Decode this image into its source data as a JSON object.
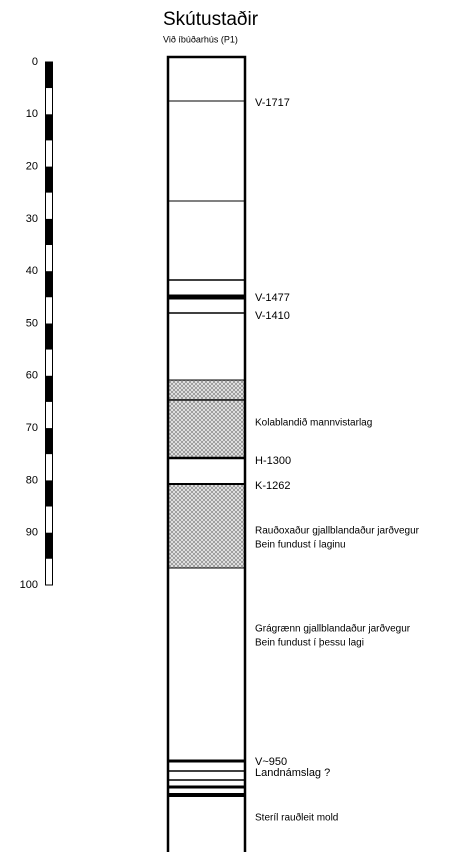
{
  "header": {
    "title": "Skútustaðir",
    "subtitle": "Við íbúðarhús (P1)"
  },
  "scale": {
    "ticks": [
      0,
      10,
      20,
      30,
      40,
      50,
      60,
      70,
      80,
      90,
      100
    ]
  },
  "layers": [
    {
      "label": "V-1717"
    },
    {
      "label": "V-1477"
    },
    {
      "label": "V-1410"
    },
    {
      "label": "Kolablandið mannvistarlag"
    },
    {
      "label": "H-1300"
    },
    {
      "label": "K-1262"
    },
    {
      "label": "Rauðoxaður gjallblandaður jarðvegur",
      "note": "Bein fundust í laginu"
    },
    {
      "label": "Grágrænn gjallblandaður jarðvegur",
      "note": "Bein fundust í þessu lagi"
    },
    {
      "label": "V~950"
    },
    {
      "label": "Landnámslag ?"
    },
    {
      "label": "Steríl rauðleit mold"
    }
  ]
}
